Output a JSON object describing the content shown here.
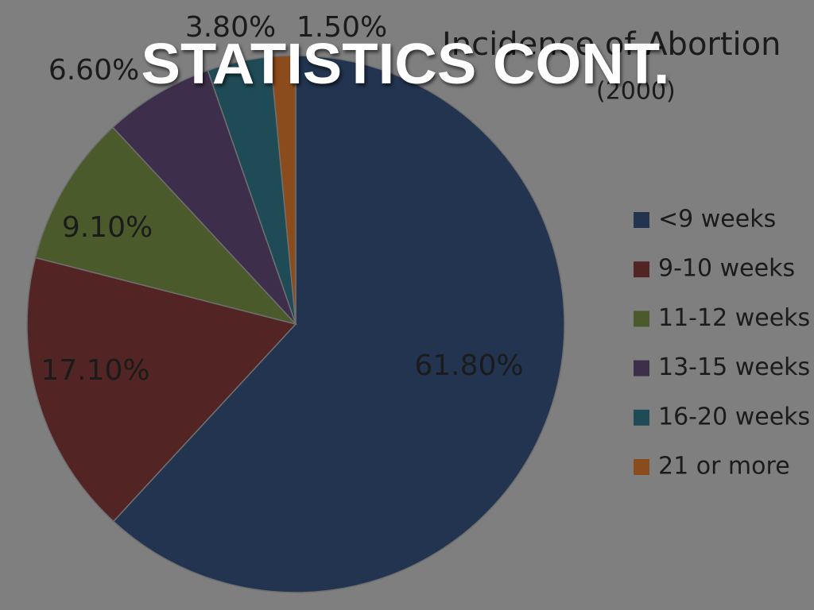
{
  "slide": {
    "title": "STATISTICS CONT."
  },
  "chart_data": {
    "type": "pie",
    "title": "Incidence of Abortion",
    "subtitle": "(2000)",
    "categories": [
      "<9 weeks",
      "9-10 weeks",
      "11-12 weeks",
      "13-15 weeks",
      "16-20 weeks",
      "21 or more"
    ],
    "values": [
      61.8,
      17.1,
      9.1,
      6.6,
      3.8,
      1.5
    ],
    "value_labels": [
      "61.80%",
      "17.10%",
      "9.10%",
      "6.60%",
      "3.80%",
      "1.50%"
    ],
    "colors": [
      "#22344f",
      "#522423",
      "#4a5a2a",
      "#3d2f4b",
      "#1f4b56",
      "#8a4c1c"
    ],
    "legend": "right"
  }
}
